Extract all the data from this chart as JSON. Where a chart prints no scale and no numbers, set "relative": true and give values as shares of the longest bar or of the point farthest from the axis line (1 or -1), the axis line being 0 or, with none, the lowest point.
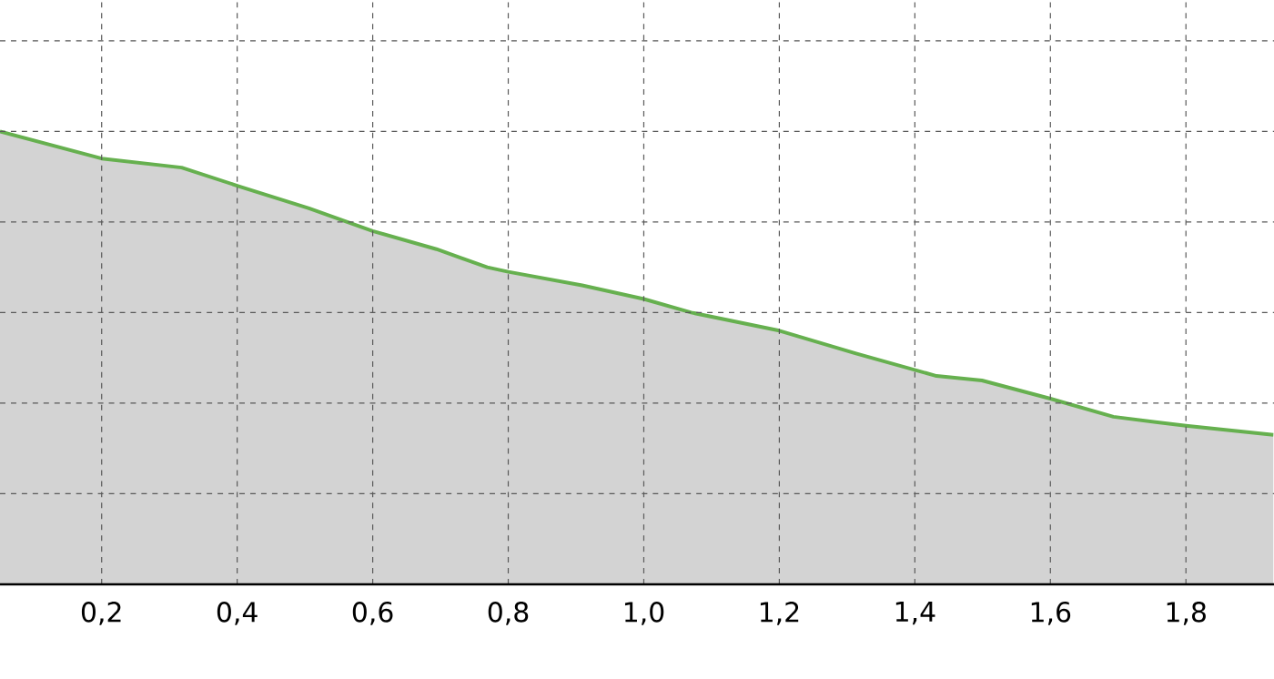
{
  "chart_data": {
    "type": "area",
    "relative": true,
    "color": "#66b04f",
    "x": [
      0.05,
      0.2,
      0.318,
      0.4,
      0.506,
      0.6,
      0.694,
      0.769,
      0.8,
      0.909,
      1.0,
      1.07,
      1.2,
      1.312,
      1.432,
      1.499,
      1.6,
      1.693,
      1.8,
      1.929
    ],
    "values": [
      1.0,
      0.94,
      0.92,
      0.88,
      0.83,
      0.78,
      0.74,
      0.7,
      0.69,
      0.66,
      0.63,
      0.6,
      0.56,
      0.51,
      0.46,
      0.45,
      0.41,
      0.37,
      0.35,
      0.33
    ],
    "xlim": [
      0.05,
      1.93
    ],
    "xticks": [
      {
        "value": 0.2,
        "label": "0,2"
      },
      {
        "value": 0.4,
        "label": "0,4"
      },
      {
        "value": 0.6,
        "label": "0,6"
      },
      {
        "value": 0.8,
        "label": "0,8"
      },
      {
        "value": 1.0,
        "label": "1,0"
      },
      {
        "value": 1.2,
        "label": "1,2"
      },
      {
        "value": 1.4,
        "label": "1,4"
      },
      {
        "value": 1.6,
        "label": "1,6"
      },
      {
        "value": 1.8,
        "label": "1,8"
      }
    ],
    "grid": true
  }
}
